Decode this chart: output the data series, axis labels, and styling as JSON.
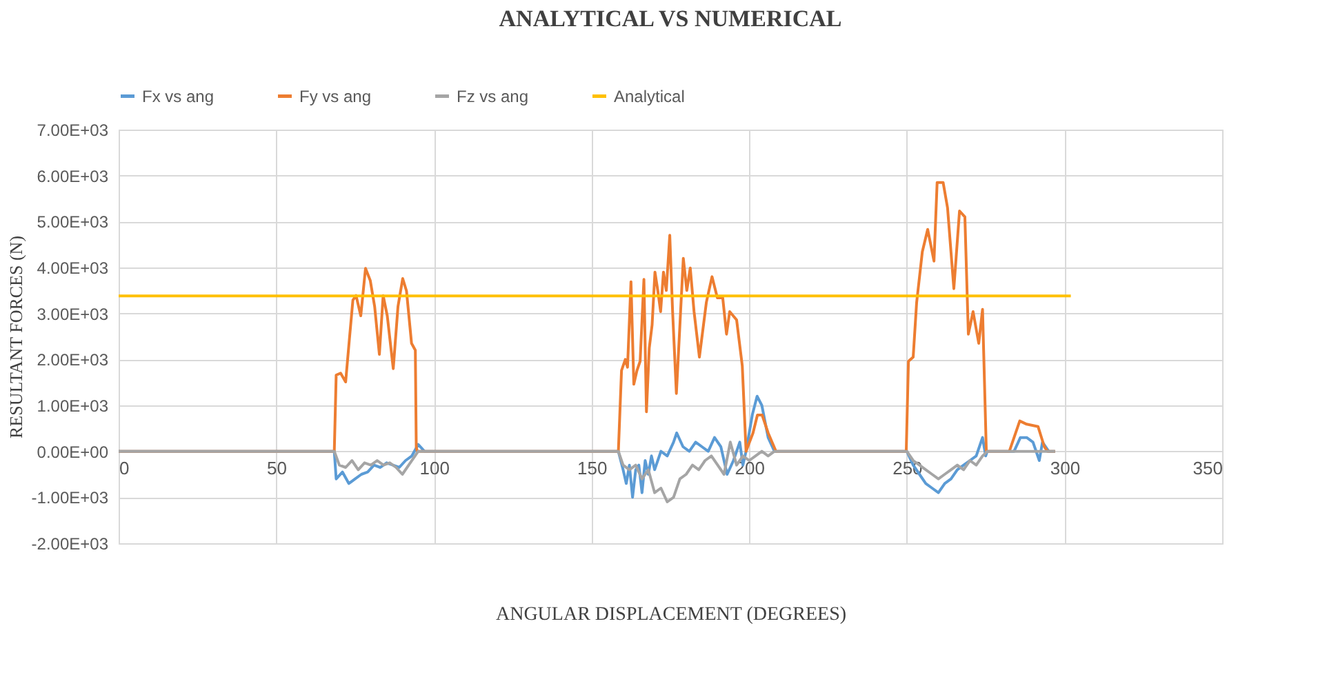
{
  "chart_data": {
    "type": "line",
    "title": "ANALYTICAL VS NUMERICAL",
    "xlabel": "ANGULAR DISPLACEMENT (DEGREES)",
    "ylabel": "RESULTANT FORCES (N)",
    "xlim": [
      0,
      350
    ],
    "xticks": [
      0,
      50,
      100,
      150,
      200,
      250,
      300,
      350
    ],
    "ylim": [
      -2000,
      7000
    ],
    "yticks": [
      {
        "value": -2000,
        "label": "-2.00E+03"
      },
      {
        "value": -1000,
        "label": "-1.00E+03"
      },
      {
        "value": 0,
        "label": "0.00E+00"
      },
      {
        "value": 1000,
        "label": "1.00E+03"
      },
      {
        "value": 2000,
        "label": "2.00E+03"
      },
      {
        "value": 3000,
        "label": "3.00E+03"
      },
      {
        "value": 4000,
        "label": "4.00E+03"
      },
      {
        "value": 5000,
        "label": "5.00E+03"
      },
      {
        "value": 6000,
        "label": "6.00E+03"
      },
      {
        "value": 7000,
        "label": "7.00E+03"
      }
    ],
    "grid": true,
    "legend": "top",
    "marker": "none",
    "line_style": "solid",
    "series": [
      {
        "name": "Fx vs ang",
        "color": "#5b9bd5",
        "x": [
          0,
          68.4,
          69,
          71,
          73,
          75,
          77,
          79,
          81,
          83,
          85,
          87,
          89,
          91,
          93,
          95,
          97,
          158.5,
          160,
          161,
          162,
          163,
          164,
          165,
          166,
          167,
          168,
          169,
          170,
          171,
          172,
          174,
          176,
          177,
          179,
          181,
          183,
          185,
          187,
          189,
          191,
          193,
          195,
          197,
          198,
          199,
          201,
          202.5,
          204,
          206,
          208,
          250,
          252,
          254,
          256,
          258,
          260,
          262,
          264,
          266,
          268,
          270,
          272,
          273,
          274,
          275,
          275.5,
          284,
          286,
          288,
          290,
          292,
          293,
          295,
          297
        ],
        "values": [
          0,
          0,
          -600,
          -450,
          -700,
          -600,
          -500,
          -450,
          -300,
          -350,
          -250,
          -300,
          -350,
          -200,
          -100,
          150,
          0,
          0,
          -400,
          -700,
          -300,
          -1000,
          -400,
          -300,
          -900,
          -200,
          -500,
          -100,
          -400,
          -200,
          0,
          -100,
          200,
          400,
          100,
          0,
          200,
          100,
          0,
          300,
          100,
          -500,
          -200,
          200,
          -300,
          0,
          800,
          1200,
          1000,
          300,
          0,
          0,
          -300,
          -500,
          -700,
          -800,
          -900,
          -700,
          -600,
          -400,
          -300,
          -200,
          -100,
          100,
          300,
          -100,
          0,
          0,
          300,
          300,
          200,
          -200,
          200,
          0,
          0
        ]
      },
      {
        "name": "Fy vs ang",
        "color": "#ed7d31",
        "x": [
          0,
          68.4,
          69,
          70.4,
          72,
          73.2,
          74.3,
          75.3,
          76.8,
          78.3,
          79.8,
          81.2,
          82.7,
          83.9,
          85.2,
          87.1,
          88.6,
          90.1,
          91.3,
          92.9,
          94.1,
          94.4,
          94.7,
          158.5,
          159.5,
          160.7,
          161.4,
          162.5,
          163.4,
          164.4,
          165.4,
          166.6,
          167.4,
          168.3,
          169.2,
          170.1,
          171,
          171.9,
          172.8,
          173.7,
          174.8,
          175.7,
          176.9,
          178.1,
          179.1,
          180.2,
          181.3,
          182.5,
          184.2,
          186.4,
          188.2,
          189.9,
          191.6,
          192.8,
          193.8,
          196,
          197.8,
          199,
          201.2,
          202.6,
          204.1,
          206,
          208.5,
          249.8,
          250.5,
          252,
          253.1,
          254.9,
          256.6,
          258.6,
          259.6,
          261.5,
          262.9,
          264.9,
          266.7,
          268.4,
          269.5,
          271,
          272.8,
          274,
          275.2,
          282.5,
          285.8,
          288,
          291.6,
          293.6,
          294.6,
          297
        ],
        "values": [
          0,
          0,
          1660,
          1700,
          1510,
          2450,
          3290,
          3390,
          2950,
          3980,
          3720,
          3150,
          2110,
          3390,
          2950,
          1800,
          3150,
          3760,
          3490,
          2350,
          2200,
          100,
          0,
          0,
          1760,
          2000,
          1830,
          3690,
          1460,
          1760,
          1960,
          3740,
          860,
          2250,
          2750,
          3900,
          3500,
          3040,
          3900,
          3500,
          4700,
          3040,
          1260,
          2860,
          4200,
          3500,
          3990,
          3040,
          2050,
          3240,
          3800,
          3340,
          3340,
          2550,
          3040,
          2860,
          1860,
          0,
          400,
          790,
          790,
          400,
          0,
          0,
          1960,
          2050,
          3240,
          4340,
          4830,
          4140,
          5850,
          5850,
          5300,
          3540,
          5230,
          5100,
          2550,
          3040,
          2350,
          3090,
          0,
          0,
          660,
          590,
          540,
          100,
          0,
          0
        ]
      },
      {
        "name": "Fz vs ang",
        "color": "#a5a5a5",
        "x": [
          0,
          68.4,
          70,
          72,
          74,
          76,
          78,
          80,
          82,
          84,
          86,
          88,
          90,
          92,
          94,
          95,
          158.5,
          160,
          162,
          164,
          166,
          168,
          170,
          172,
          174,
          176,
          178,
          180,
          182,
          184,
          186,
          188,
          190,
          192,
          194,
          196,
          198,
          200,
          202,
          204,
          206,
          208,
          250,
          252,
          254,
          256,
          258,
          260,
          262,
          264,
          266,
          268,
          270,
          272,
          274,
          275.5,
          297
        ],
        "values": [
          0,
          0,
          -300,
          -350,
          -200,
          -400,
          -250,
          -300,
          -200,
          -300,
          -250,
          -350,
          -500,
          -300,
          -100,
          0,
          0,
          -300,
          -400,
          -300,
          -600,
          -400,
          -900,
          -800,
          -1100,
          -1000,
          -600,
          -500,
          -300,
          -400,
          -200,
          -100,
          -300,
          -500,
          200,
          -300,
          -100,
          -200,
          -100,
          0,
          -100,
          0,
          0,
          -200,
          -300,
          -400,
          -500,
          -600,
          -500,
          -400,
          -300,
          -400,
          -200,
          -300,
          -100,
          0,
          0
        ]
      },
      {
        "name": "Analytical",
        "color": "#ffc000",
        "x": [
          0,
          302
        ],
        "values": [
          3380,
          3380
        ]
      }
    ]
  }
}
